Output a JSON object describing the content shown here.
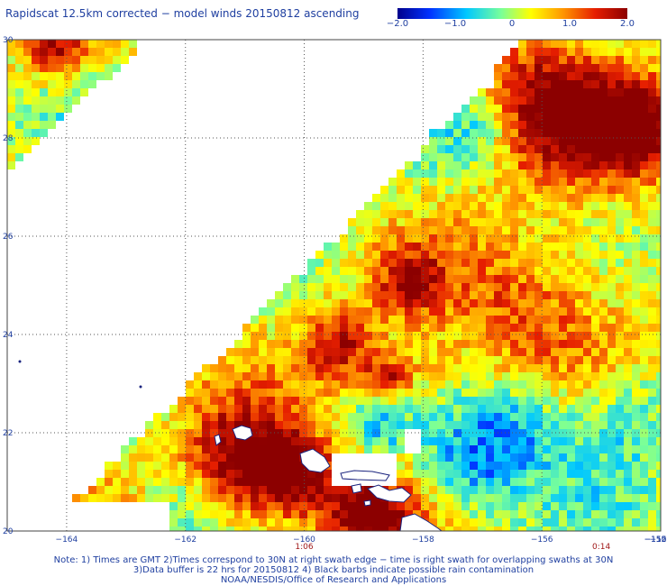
{
  "title": "Rapidscat 12.5km corrected − model winds 20150812 ascending",
  "colorbar": {
    "labels": [
      "−2.0",
      "−1.0",
      "0",
      "1.0",
      "2.0"
    ],
    "values": [
      -2.0,
      -1.0,
      0,
      1.0,
      2.0
    ],
    "range": [
      -2.0,
      2.0
    ],
    "colors": [
      "#00008c",
      "#0032ff",
      "#00c8ff",
      "#78ff9a",
      "#ffff00",
      "#ff9600",
      "#e61e00",
      "#8c0000"
    ]
  },
  "map": {
    "lon_range": [
      -165,
      -154
    ],
    "lat_range": [
      20,
      30
    ],
    "lon_ticks": [
      {
        "value": -164,
        "label": "−164"
      },
      {
        "value": -162,
        "label": "−162"
      },
      {
        "value": -160,
        "label": "−160"
      },
      {
        "value": -158,
        "label": "−158"
      },
      {
        "value": -156,
        "label": "−156"
      },
      {
        "value": -154,
        "label": "−154"
      },
      {
        "value": -152,
        "label": "−152"
      },
      {
        "value": -150,
        "label": "−150"
      }
    ],
    "lat_ticks": [
      {
        "value": 20,
        "label": "20"
      },
      {
        "value": 22,
        "label": "22"
      },
      {
        "value": 24,
        "label": "24"
      },
      {
        "value": 26,
        "label": "26"
      },
      {
        "value": 28,
        "label": "28"
      },
      {
        "value": 30,
        "label": "30"
      }
    ],
    "swath_times": [
      {
        "lon": -160.0,
        "label": "1:06"
      },
      {
        "lon": -155.0,
        "label": "0:14"
      }
    ],
    "grid": true
  },
  "notes": [
    "Note: 1) Times are GMT 2)Times correspond to 30N at right swath edge − time is right swath for overlapping swaths at 30N",
    "3)Data buffer is 22 hrs for 20150812 4) Black barbs indicate possible rain contamination",
    "NOAA/NESDIS/Office of Research and Applications"
  ]
}
